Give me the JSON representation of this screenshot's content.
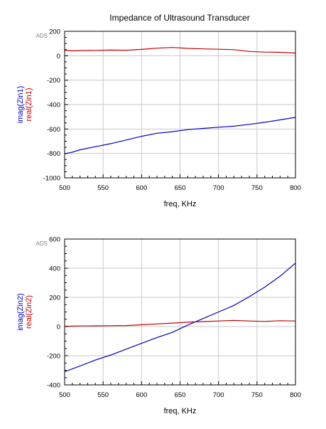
{
  "figure": {
    "title": "Impedance of Ultrasound Transducer"
  },
  "chart_data": [
    {
      "type": "line",
      "watermark": "ADS",
      "xlabel": "freq, KHz",
      "ylabel_parts": [
        {
          "text": "imag(Zin1)",
          "color": "#0000c0"
        },
        {
          "text": "real(Zin1)",
          "color": "#c00000"
        }
      ],
      "xlim": [
        500,
        800
      ],
      "ylim": [
        -1000,
        200
      ],
      "xticks": [
        500,
        550,
        600,
        650,
        700,
        750,
        800
      ],
      "yticks": [
        -1000,
        -800,
        -600,
        -400,
        -200,
        0,
        200
      ],
      "x_minor_step": 10,
      "y_minor_step": 50,
      "grid": true,
      "x": [
        500,
        510,
        520,
        540,
        560,
        580,
        600,
        620,
        640,
        660,
        680,
        700,
        720,
        740,
        760,
        780,
        800
      ],
      "series": [
        {
          "name": "imag(Zin1)",
          "color": "#0000c0",
          "values": [
            -803,
            -790,
            -770,
            -745,
            -720,
            -690,
            -660,
            -635,
            -622,
            -605,
            -595,
            -585,
            -577,
            -562,
            -545,
            -525,
            -505
          ]
        },
        {
          "name": "real(Zin1)",
          "color": "#c00000",
          "values": [
            45,
            40,
            42,
            44,
            46,
            45,
            52,
            62,
            68,
            60,
            56,
            53,
            50,
            35,
            30,
            28,
            22
          ]
        }
      ]
    },
    {
      "type": "line",
      "watermark": "ADS",
      "xlabel": "freq, KHz",
      "ylabel_parts": [
        {
          "text": "imag(Zin2)",
          "color": "#0000c0"
        },
        {
          "text": "real(Zin2)",
          "color": "#c00000"
        }
      ],
      "xlim": [
        500,
        800
      ],
      "ylim": [
        -400,
        600
      ],
      "xticks": [
        500,
        550,
        600,
        650,
        700,
        750,
        800
      ],
      "yticks": [
        -400,
        -200,
        0,
        200,
        400,
        600
      ],
      "x_minor_step": 10,
      "y_minor_step": 50,
      "grid": true,
      "x": [
        500,
        520,
        540,
        560,
        580,
        600,
        620,
        640,
        660,
        680,
        700,
        720,
        740,
        760,
        780,
        800
      ],
      "series": [
        {
          "name": "imag(Zin2)",
          "color": "#0000c0",
          "values": [
            -310,
            -270,
            -230,
            -195,
            -155,
            -115,
            -75,
            -40,
            10,
            55,
            100,
            145,
            205,
            270,
            345,
            435
          ]
        },
        {
          "name": "real(Zin2)",
          "color": "#c00000",
          "values": [
            2,
            4,
            5,
            6,
            7,
            12,
            18,
            24,
            30,
            34,
            38,
            42,
            38,
            35,
            40,
            38
          ]
        }
      ]
    }
  ]
}
